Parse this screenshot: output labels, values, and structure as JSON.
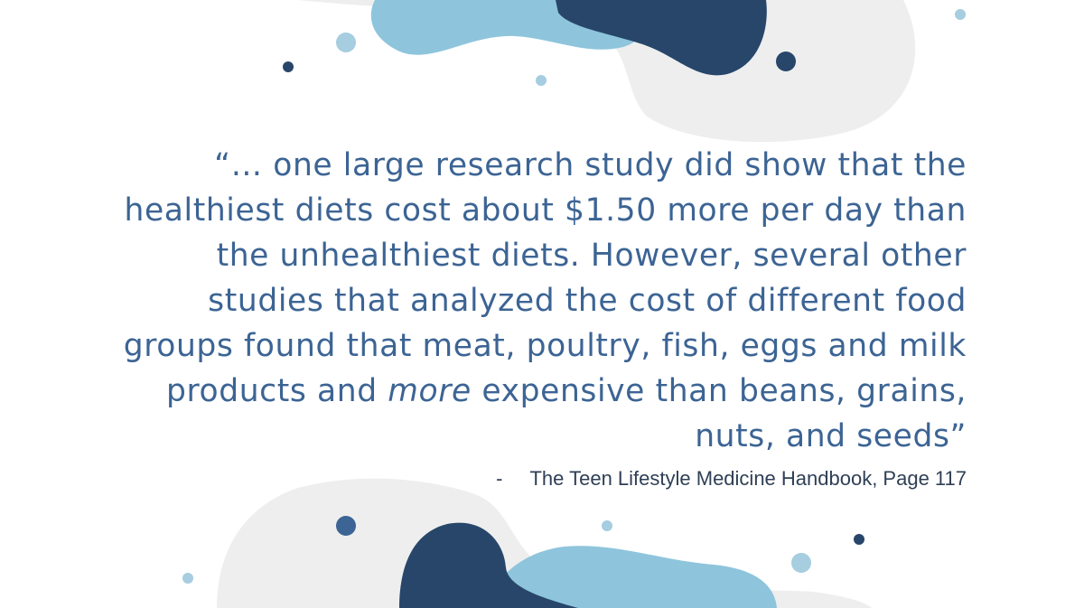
{
  "quote": {
    "line_1": "“… one large research study did show that the",
    "line_2": "healthiest diets cost about $1.50 more per day than",
    "line_3": "the unhealthiest diets. However, several other",
    "line_4": "studies that analyzed the cost of different food",
    "line_5": "groups found that meat, poultry, fish, eggs and milk",
    "line_6_before": "products and ",
    "line_6_emphasis": "more",
    "line_6_after": " expensive than beans, grains,",
    "line_7": "nuts, and seeds”"
  },
  "attribution": {
    "dash": "-",
    "source": "The Teen Lifestyle Medicine Handbook, Page 117"
  },
  "colors": {
    "quote_text": "#3c6494",
    "attribution_text": "#2f3f55",
    "navy_blob": "#27466a",
    "light_blue_blob": "#8ec5dc",
    "gray_blob": "#eeeeee",
    "background": "#ffffff"
  }
}
